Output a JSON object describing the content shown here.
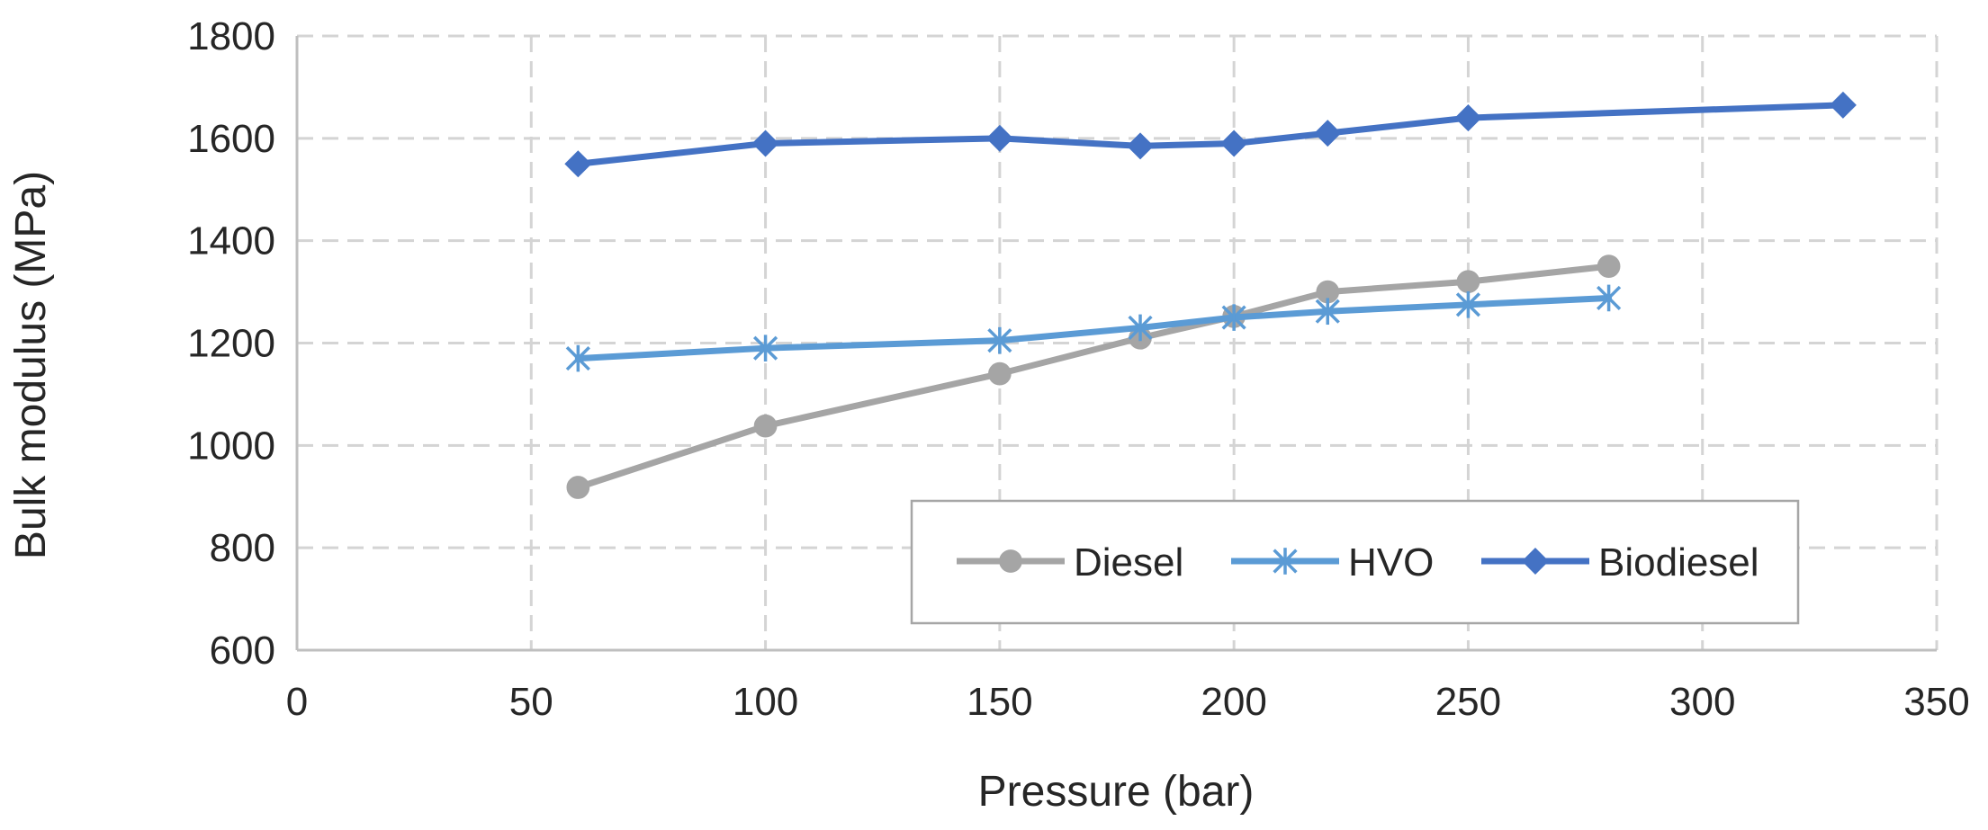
{
  "chart_data": {
    "type": "line",
    "title": "",
    "xlabel": "Pressure (bar)",
    "ylabel": "Bulk modulus (MPa)",
    "xlim": [
      0,
      350
    ],
    "ylim": [
      600,
      1800
    ],
    "x_ticks": [
      0,
      50,
      100,
      150,
      200,
      250,
      300,
      350
    ],
    "y_ticks": [
      600,
      800,
      1000,
      1200,
      1400,
      1600,
      1800
    ],
    "x_tick_labels": [
      "0",
      "50",
      "100",
      "150",
      "200",
      "250",
      "300",
      "350"
    ],
    "y_tick_labels": [
      "600",
      "800",
      "1000",
      "1200",
      "1400",
      "1600",
      "1800"
    ],
    "grid": true,
    "legend_position": "lower-right inside plot",
    "series": [
      {
        "name": "Diesel",
        "color": "#a5a5a5",
        "marker": "circle",
        "x": [
          60,
          100,
          150,
          180,
          200,
          220,
          250,
          280
        ],
        "y": [
          918,
          1038,
          1140,
          1210,
          1252,
          1300,
          1320,
          1350
        ]
      },
      {
        "name": "HVO",
        "color": "#5b9bd5",
        "marker": "asterisk",
        "x": [
          60,
          100,
          150,
          180,
          200,
          220,
          250,
          280
        ],
        "y": [
          1170,
          1190,
          1205,
          1230,
          1250,
          1262,
          1275,
          1288
        ]
      },
      {
        "name": "Biodiesel",
        "color": "#4472c4",
        "marker": "diamond",
        "x": [
          60,
          100,
          150,
          180,
          200,
          220,
          250,
          330
        ],
        "y": [
          1550,
          1590,
          1600,
          1585,
          1590,
          1610,
          1640,
          1665
        ]
      }
    ]
  }
}
